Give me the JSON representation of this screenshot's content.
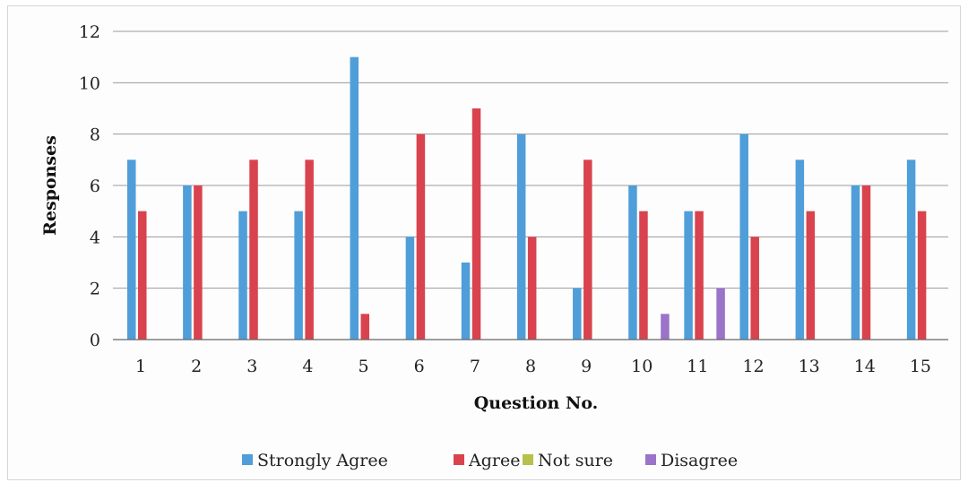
{
  "chart_data": {
    "type": "bar",
    "title": "",
    "xlabel": "Question No.",
    "ylabel": "Responses",
    "ylim": [
      0,
      12
    ],
    "yticks": [
      0,
      2,
      4,
      6,
      8,
      10,
      12
    ],
    "grid": "horizontal",
    "legend_position": "bottom",
    "categories": [
      "1",
      "2",
      "3",
      "4",
      "5",
      "6",
      "7",
      "8",
      "9",
      "10",
      "11",
      "12",
      "13",
      "14",
      "15"
    ],
    "series": [
      {
        "name": "Strongly Agree",
        "color": "#4f9ed9",
        "values": [
          7,
          6,
          5,
          5,
          11,
          4,
          3,
          8,
          2,
          6,
          5,
          8,
          7,
          6,
          7
        ]
      },
      {
        "name": "Agree",
        "color": "#d9434e",
        "values": [
          5,
          6,
          7,
          7,
          1,
          8,
          9,
          4,
          7,
          5,
          5,
          4,
          5,
          6,
          5
        ]
      },
      {
        "name": "Not sure",
        "color": "#b7c04a",
        "values": [
          0,
          0,
          0,
          0,
          0,
          0,
          0,
          0,
          0,
          0,
          0,
          0,
          0,
          0,
          0
        ]
      },
      {
        "name": "Disagree",
        "color": "#9b73c9",
        "values": [
          0,
          0,
          0,
          0,
          0,
          0,
          0,
          0,
          0,
          1,
          2,
          0,
          0,
          0,
          0
        ]
      }
    ]
  }
}
